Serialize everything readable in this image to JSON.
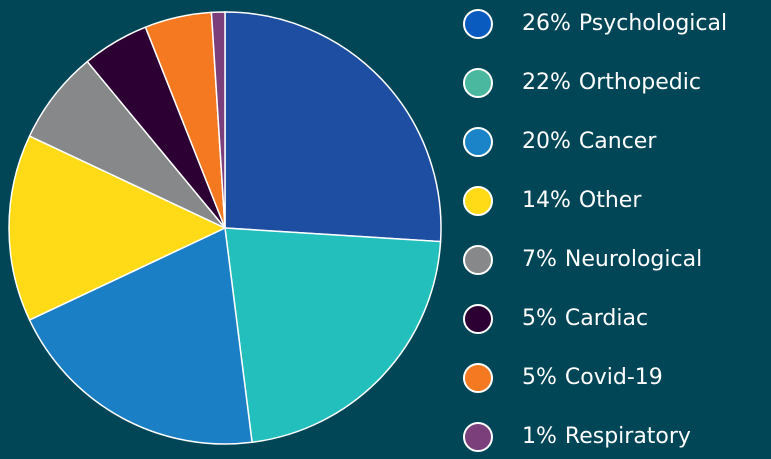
{
  "chart_data": {
    "type": "pie",
    "categories": [
      "Psychological",
      "Orthopedic",
      "Cancer",
      "Other",
      "Neurological",
      "Cardiac",
      "Covid-19",
      "Respiratory"
    ],
    "values": [
      26,
      22,
      20,
      14,
      7,
      5,
      5,
      1
    ],
    "value_labels": [
      "26%",
      "22%",
      "20%",
      "14%",
      "7%",
      "5%",
      "5%",
      "1%"
    ],
    "colors": [
      "#1d4ea2",
      "#23bfbd",
      "#1b7fc6",
      "#ffdb17",
      "#868889",
      "#2d0034",
      "#f47920",
      "#7b3f7b"
    ],
    "legend_colors": [
      "#0a5bbf",
      "#49b89e",
      "#1b84c9",
      "#ffdb17",
      "#868889",
      "#2d0034",
      "#f47920",
      "#7b3f7b"
    ],
    "legend": "right"
  }
}
